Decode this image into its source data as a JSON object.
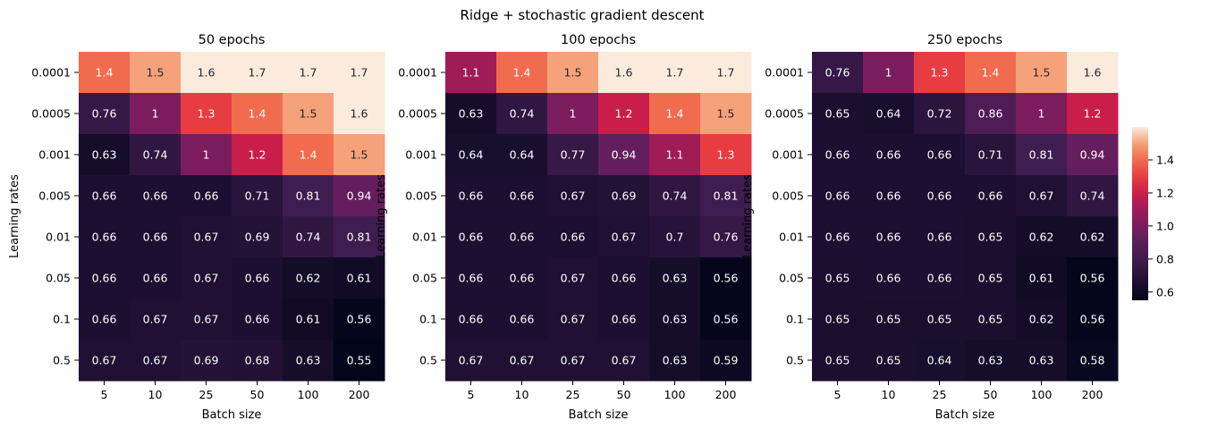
{
  "suptitle": "Ridge + stochastic gradient descent",
  "chart_data": [
    {
      "type": "heatmap",
      "title": "50 epochs",
      "xlabel": "Batch size",
      "ylabel": "Learning rates",
      "x": [
        "5",
        "10",
        "25",
        "50",
        "100",
        "200"
      ],
      "y": [
        "0.0001",
        "0.0005",
        "0.001",
        "0.005",
        "0.01",
        "0.05",
        "0.1",
        "0.5"
      ],
      "values": [
        [
          1.4,
          1.5,
          1.6,
          1.7,
          1.7,
          1.7
        ],
        [
          0.76,
          1,
          1.3,
          1.4,
          1.5,
          1.6
        ],
        [
          0.63,
          0.74,
          1,
          1.2,
          1.4,
          1.5
        ],
        [
          0.66,
          0.66,
          0.66,
          0.71,
          0.81,
          0.94
        ],
        [
          0.66,
          0.66,
          0.67,
          0.69,
          0.74,
          0.81
        ],
        [
          0.66,
          0.66,
          0.67,
          0.66,
          0.62,
          0.61
        ],
        [
          0.66,
          0.67,
          0.67,
          0.66,
          0.61,
          0.56
        ],
        [
          0.67,
          0.67,
          0.69,
          0.68,
          0.63,
          0.55
        ]
      ]
    },
    {
      "type": "heatmap",
      "title": "100 epochs",
      "xlabel": "Batch size",
      "ylabel": "Learning rates",
      "x": [
        "5",
        "10",
        "25",
        "50",
        "100",
        "200"
      ],
      "y": [
        "0.0001",
        "0.0005",
        "0.001",
        "0.005",
        "0.01",
        "0.05",
        "0.1",
        "0.5"
      ],
      "values": [
        [
          1.1,
          1.4,
          1.5,
          1.6,
          1.7,
          1.7
        ],
        [
          0.63,
          0.74,
          1,
          1.2,
          1.4,
          1.5
        ],
        [
          0.64,
          0.64,
          0.77,
          0.94,
          1.1,
          1.3
        ],
        [
          0.66,
          0.66,
          0.67,
          0.69,
          0.74,
          0.81
        ],
        [
          0.66,
          0.66,
          0.66,
          0.67,
          0.7,
          0.76
        ],
        [
          0.66,
          0.66,
          0.67,
          0.66,
          0.63,
          0.56
        ],
        [
          0.66,
          0.66,
          0.67,
          0.66,
          0.63,
          0.56
        ],
        [
          0.67,
          0.67,
          0.67,
          0.67,
          0.63,
          0.59
        ]
      ]
    },
    {
      "type": "heatmap",
      "title": "250 epochs",
      "xlabel": "Batch size",
      "ylabel": "Learning rates",
      "x": [
        "5",
        "10",
        "25",
        "50",
        "100",
        "200"
      ],
      "y": [
        "0.0001",
        "0.0005",
        "0.001",
        "0.005",
        "0.01",
        "0.05",
        "0.1",
        "0.5"
      ],
      "values": [
        [
          0.76,
          1,
          1.3,
          1.4,
          1.5,
          1.6
        ],
        [
          0.65,
          0.64,
          0.72,
          0.86,
          1,
          1.2
        ],
        [
          0.66,
          0.66,
          0.66,
          0.71,
          0.81,
          0.94
        ],
        [
          0.66,
          0.66,
          0.66,
          0.66,
          0.67,
          0.74
        ],
        [
          0.66,
          0.66,
          0.66,
          0.65,
          0.62,
          0.62
        ],
        [
          0.65,
          0.66,
          0.66,
          0.65,
          0.61,
          0.56
        ],
        [
          0.65,
          0.65,
          0.65,
          0.65,
          0.62,
          0.56
        ],
        [
          0.65,
          0.65,
          0.64,
          0.63,
          0.63,
          0.58
        ]
      ]
    }
  ],
  "colorbar": {
    "colormap": "rocket",
    "vmin": 0.55,
    "vmax": 1.6,
    "ticks": [
      "0.6",
      "0.8",
      "1.0",
      "1.2",
      "1.4"
    ]
  },
  "colors": {
    "annotation_dark_text": "#262626",
    "annotation_light_text": "#ffffff"
  }
}
